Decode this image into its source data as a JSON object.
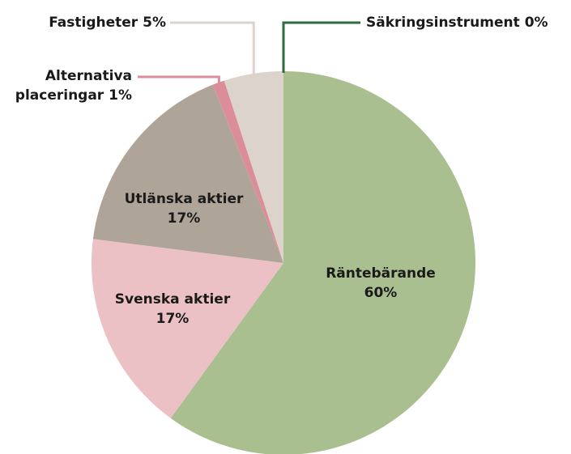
{
  "chart_data": {
    "type": "pie",
    "categories": [
      "Räntebärande",
      "Svenska aktier",
      "Utlänska aktier",
      "Alternativa placeringar",
      "Fastigheter",
      "Säkringsinstrument"
    ],
    "values": [
      60,
      17,
      17,
      1,
      5,
      0
    ],
    "value_labels": [
      "60%",
      "17%",
      "17%",
      "1%",
      "5%",
      "0%"
    ],
    "colors": [
      "#a9bf8f",
      "#ebc1c6",
      "#afa498",
      "#dc8d9a",
      "#ddd3cd",
      "#2e6b3e"
    ]
  }
}
